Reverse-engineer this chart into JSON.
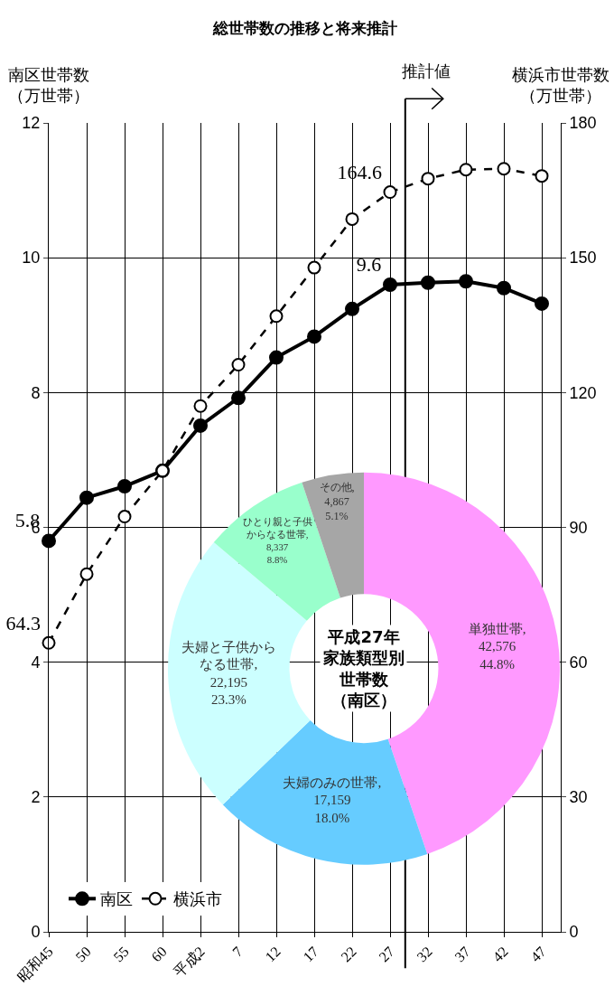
{
  "chart_data": [
    {
      "type": "line",
      "title": "総世帯数の推移と将来推計",
      "ylabel": "南区世帯数（万世帯）",
      "y2label": "横浜市世帯数（万世帯）",
      "categories": [
        "昭和45",
        "50",
        "55",
        "60",
        "平成2",
        "7",
        "12",
        "17",
        "22",
        "27",
        "32",
        "37",
        "42",
        "47"
      ],
      "series": [
        {
          "name": "南区",
          "color": "#000000",
          "marker": "circle",
          "line_style": "solid",
          "values": [
            5.8,
            6.44,
            6.61,
            6.84,
            7.51,
            7.92,
            8.52,
            8.83,
            9.24,
            9.6,
            9.63,
            9.65,
            9.55,
            9.32
          ],
          "value_labels": [
            "5.8",
            null,
            null,
            null,
            null,
            null,
            null,
            null,
            null,
            "9.6",
            null,
            null,
            null,
            null
          ]
        },
        {
          "name": "横浜市",
          "color": "#000000",
          "marker": "circle open",
          "line_style": "dashed",
          "axis": "y2",
          "values": [
            64.3,
            79.6,
            92.4,
            102.6,
            117.0,
            126.2,
            137.0,
            147.8,
            158.6,
            164.6,
            167.6,
            169.6,
            169.8,
            168.2
          ],
          "value_labels": [
            "64.3",
            null,
            null,
            null,
            null,
            null,
            null,
            null,
            null,
            "164.6",
            null,
            null,
            null,
            null
          ]
        }
      ],
      "ylim": [
        0,
        12
      ],
      "yticks": [
        0,
        2,
        4,
        6,
        8,
        10,
        12
      ],
      "y2lim": [
        0,
        180
      ],
      "y2ticks": [
        0,
        30,
        60,
        90,
        120,
        150,
        180
      ],
      "grid": true,
      "legend": "bottom left",
      "annotations": [
        "推計値"
      ]
    },
    {
      "type": "donut",
      "title": "平成27年家族類型別世帯数（南区）",
      "categories": [
        "単独世帯",
        "夫婦のみの世帯",
        "夫婦と子供からなる世帯",
        "ひとり親と子供からなる世帯",
        "その他"
      ],
      "values": [
        42576,
        17159,
        22195,
        8337,
        4867
      ],
      "colors": [
        "#ff99ff",
        "#66ccff",
        "#ccffff",
        "#99ffcc",
        "#a6a6a6"
      ],
      "value_labels": [
        ",\n42,576\n44.8%",
        ",\n17,159\n18.0%",
        ",\n22,195\n23.3%",
        ",\n8,337\n8.8%",
        ",\n4,867\n5.1%"
      ]
    }
  ]
}
